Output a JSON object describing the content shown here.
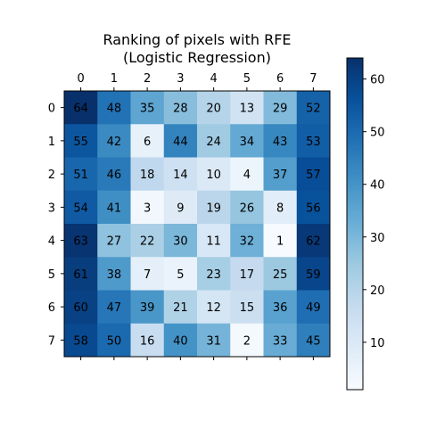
{
  "chart_data": {
    "type": "heatmap",
    "title_lines": [
      "Ranking of pixels with RFE",
      "(Logistic Regression)"
    ],
    "x_ticks": [
      "0",
      "1",
      "2",
      "3",
      "4",
      "5",
      "6",
      "7"
    ],
    "y_ticks": [
      "0",
      "1",
      "2",
      "3",
      "4",
      "5",
      "6",
      "7"
    ],
    "x_tick_position": "top",
    "matrix": [
      [
        64,
        48,
        35,
        28,
        20,
        13,
        29,
        52
      ],
      [
        55,
        42,
        6,
        44,
        24,
        34,
        43,
        53
      ],
      [
        51,
        46,
        18,
        14,
        10,
        4,
        37,
        57
      ],
      [
        54,
        41,
        3,
        9,
        19,
        26,
        8,
        56
      ],
      [
        63,
        27,
        22,
        30,
        11,
        32,
        1,
        62
      ],
      [
        61,
        38,
        7,
        5,
        23,
        17,
        25,
        59
      ],
      [
        60,
        47,
        39,
        21,
        12,
        15,
        36,
        49
      ],
      [
        58,
        50,
        16,
        40,
        31,
        2,
        33,
        45
      ]
    ],
    "colormap": "Blues",
    "value_range": [
      1,
      64
    ],
    "colorbar_ticks": [
      10,
      20,
      30,
      40,
      50,
      60
    ],
    "colorbar_tick_labels": [
      "10",
      "20",
      "30",
      "40",
      "50",
      "60"
    ],
    "grid": false
  }
}
